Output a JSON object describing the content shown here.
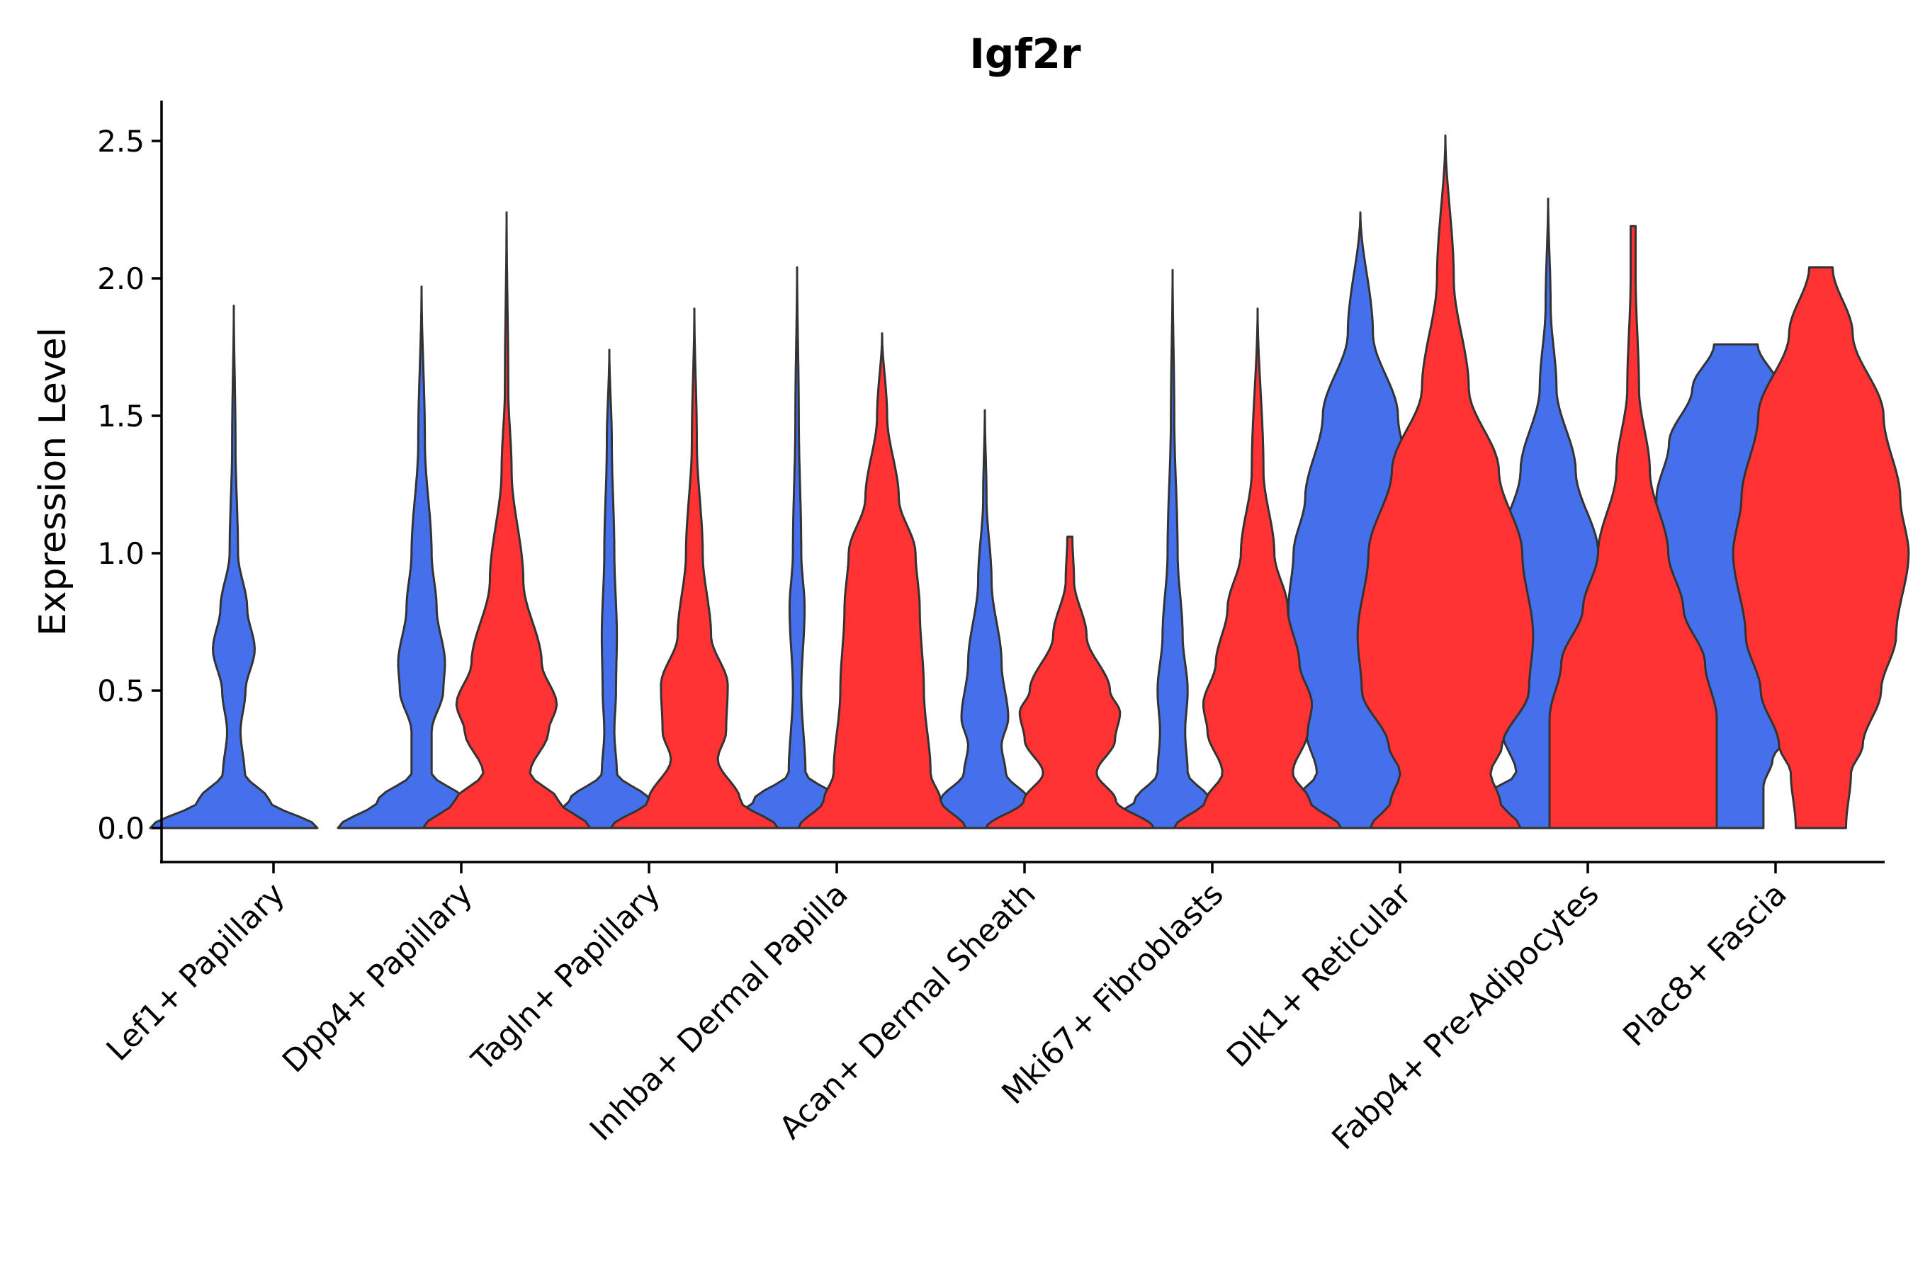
{
  "chart_data": {
    "type": "violin",
    "title": "Igf2r",
    "xlabel": "",
    "ylabel": "Expression Level",
    "ylim": [
      -0.12,
      2.65
    ],
    "yticks": [
      "0.0",
      "0.5",
      "1.0",
      "1.5",
      "2.0",
      "2.5"
    ],
    "grid": false,
    "legend": "none",
    "categories": [
      "Lef1+ Papillary",
      "Dpp4+ Papillary",
      "Tagln+ Papillary",
      "Inhba+ Dermal Papilla",
      "Acan+ Dermal Sheath",
      "Mki67+ Fibroblasts",
      "Dlk1+ Reticular",
      "Fabp4+ Pre-Adipocytes",
      "Plac8+ Fascia"
    ],
    "series": [
      {
        "name": "group-blue",
        "color": "#4570EB",
        "violins": [
          {
            "max": 1.9,
            "profile": [
              [
                0,
                1
              ],
              [
                0.1,
                0.42
              ],
              [
                0.2,
                0.13
              ],
              [
                0.35,
                0.08
              ],
              [
                0.5,
                0.14
              ],
              [
                0.65,
                0.25
              ],
              [
                0.8,
                0.16
              ],
              [
                1.0,
                0.05
              ],
              [
                1.4,
                0.02
              ],
              [
                1.9,
                0
              ]
            ]
          },
          {
            "max": 1.97,
            "profile": [
              [
                0,
                1
              ],
              [
                0.1,
                0.52
              ],
              [
                0.2,
                0.12
              ],
              [
                0.35,
                0.12
              ],
              [
                0.5,
                0.26
              ],
              [
                0.6,
                0.28
              ],
              [
                0.8,
                0.18
              ],
              [
                1.0,
                0.12
              ],
              [
                1.4,
                0.04
              ],
              [
                1.97,
                0
              ]
            ]
          },
          {
            "max": 1.74,
            "profile": [
              [
                0,
                1
              ],
              [
                0.1,
                0.48
              ],
              [
                0.2,
                0.09
              ],
              [
                0.35,
                0.06
              ],
              [
                0.5,
                0.08
              ],
              [
                0.7,
                0.09
              ],
              [
                1.0,
                0.06
              ],
              [
                1.4,
                0.03
              ],
              [
                1.74,
                0
              ]
            ]
          },
          {
            "max": 2.04,
            "profile": [
              [
                0,
                1
              ],
              [
                0.1,
                0.52
              ],
              [
                0.2,
                0.1
              ],
              [
                0.5,
                0.05
              ],
              [
                0.8,
                0.09
              ],
              [
                1.0,
                0.05
              ],
              [
                1.5,
                0.02
              ],
              [
                2.04,
                0
              ]
            ]
          },
          {
            "max": 1.52,
            "profile": [
              [
                0,
                1
              ],
              [
                0.1,
                0.53
              ],
              [
                0.2,
                0.25
              ],
              [
                0.3,
                0.2
              ],
              [
                0.4,
                0.28
              ],
              [
                0.6,
                0.2
              ],
              [
                0.9,
                0.08
              ],
              [
                1.2,
                0.02
              ],
              [
                1.52,
                0
              ]
            ]
          },
          {
            "max": 2.03,
            "profile": [
              [
                0,
                1
              ],
              [
                0.1,
                0.45
              ],
              [
                0.2,
                0.18
              ],
              [
                0.35,
                0.15
              ],
              [
                0.5,
                0.18
              ],
              [
                0.7,
                0.12
              ],
              [
                1.0,
                0.06
              ],
              [
                1.5,
                0.02
              ],
              [
                2.03,
                0
              ]
            ]
          },
          {
            "max": 2.24,
            "profile": [
              [
                0,
                1
              ],
              [
                0.1,
                0.78
              ],
              [
                0.2,
                0.52
              ],
              [
                0.35,
                0.65
              ],
              [
                0.5,
                0.82
              ],
              [
                0.6,
                0.86
              ],
              [
                0.8,
                0.86
              ],
              [
                1.0,
                0.8
              ],
              [
                1.2,
                0.66
              ],
              [
                1.5,
                0.45
              ],
              [
                1.8,
                0.15
              ],
              [
                2.24,
                0
              ]
            ]
          },
          {
            "max": 2.29,
            "profile": [
              [
                0,
                1
              ],
              [
                0.1,
                0.85
              ],
              [
                0.2,
                0.38
              ],
              [
                0.35,
                0.55
              ],
              [
                0.5,
                0.95
              ],
              [
                0.7,
                0.88
              ],
              [
                1.0,
                0.6
              ],
              [
                1.3,
                0.33
              ],
              [
                1.6,
                0.1
              ],
              [
                1.9,
                0.03
              ],
              [
                2.29,
                0
              ]
            ]
          },
          {
            "max": 1.76,
            "profile": [
              [
                0,
                0.33
              ],
              [
                0.15,
                0.33
              ],
              [
                0.25,
                0.44
              ],
              [
                0.35,
                0.66
              ],
              [
                0.5,
                0.9
              ],
              [
                0.7,
                0.85
              ],
              [
                1.0,
                1.0
              ],
              [
                1.2,
                0.95
              ],
              [
                1.4,
                0.8
              ],
              [
                1.6,
                0.52
              ],
              [
                1.76,
                0.26
              ]
            ]
          }
        ]
      },
      {
        "name": "group-red",
        "color": "#FF3333",
        "violins": [
          null,
          {
            "max": 2.24,
            "profile": [
              [
                0,
                1
              ],
              [
                0.1,
                0.62
              ],
              [
                0.2,
                0.28
              ],
              [
                0.35,
                0.5
              ],
              [
                0.45,
                0.6
              ],
              [
                0.6,
                0.42
              ],
              [
                0.9,
                0.2
              ],
              [
                1.3,
                0.06
              ],
              [
                1.6,
                0.02
              ],
              [
                2.24,
                0
              ]
            ]
          },
          {
            "max": 1.89,
            "profile": [
              [
                0,
                1
              ],
              [
                0.1,
                0.55
              ],
              [
                0.25,
                0.28
              ],
              [
                0.35,
                0.38
              ],
              [
                0.52,
                0.4
              ],
              [
                0.7,
                0.2
              ],
              [
                1.0,
                0.1
              ],
              [
                1.4,
                0.03
              ],
              [
                1.89,
                0
              ]
            ]
          },
          {
            "max": 1.8,
            "profile": [
              [
                0,
                1
              ],
              [
                0.1,
                0.7
              ],
              [
                0.2,
                0.58
              ],
              [
                0.5,
                0.5
              ],
              [
                0.8,
                0.45
              ],
              [
                1.0,
                0.4
              ],
              [
                1.2,
                0.2
              ],
              [
                1.5,
                0.06
              ],
              [
                1.8,
                0
              ]
            ]
          },
          {
            "max": 1.06,
            "profile": [
              [
                0,
                1
              ],
              [
                0.1,
                0.55
              ],
              [
                0.2,
                0.32
              ],
              [
                0.32,
                0.54
              ],
              [
                0.42,
                0.6
              ],
              [
                0.5,
                0.48
              ],
              [
                0.7,
                0.2
              ],
              [
                0.9,
                0.05
              ],
              [
                1.06,
                0.03
              ]
            ]
          },
          {
            "max": 1.89,
            "profile": [
              [
                0,
                1
              ],
              [
                0.1,
                0.62
              ],
              [
                0.2,
                0.42
              ],
              [
                0.35,
                0.6
              ],
              [
                0.45,
                0.65
              ],
              [
                0.6,
                0.5
              ],
              [
                0.8,
                0.36
              ],
              [
                1.0,
                0.2
              ],
              [
                1.3,
                0.07
              ],
              [
                1.89,
                0
              ]
            ]
          },
          {
            "max": 2.52,
            "profile": [
              [
                0,
                0.9
              ],
              [
                0.1,
                0.65
              ],
              [
                0.2,
                0.54
              ],
              [
                0.3,
                0.68
              ],
              [
                0.5,
                1.0
              ],
              [
                0.7,
                1.05
              ],
              [
                1.0,
                0.92
              ],
              [
                1.3,
                0.64
              ],
              [
                1.6,
                0.28
              ],
              [
                2.0,
                0.1
              ],
              [
                2.52,
                0
              ]
            ]
          },
          {
            "max": 2.19,
            "profile": [
              [
                0,
                1
              ],
              [
                0.2,
                1
              ],
              [
                0.4,
                1
              ],
              [
                0.6,
                0.86
              ],
              [
                0.8,
                0.6
              ],
              [
                1.0,
                0.42
              ],
              [
                1.3,
                0.2
              ],
              [
                1.6,
                0.07
              ],
              [
                2.0,
                0.03
              ],
              [
                2.19,
                0.03
              ]
            ]
          },
          {
            "max": 2.04,
            "profile": [
              [
                0,
                0.3
              ],
              [
                0.2,
                0.36
              ],
              [
                0.3,
                0.5
              ],
              [
                0.5,
                0.72
              ],
              [
                0.7,
                0.9
              ],
              [
                1.0,
                1.05
              ],
              [
                1.2,
                0.95
              ],
              [
                1.5,
                0.75
              ],
              [
                1.8,
                0.38
              ],
              [
                2.04,
                0.14
              ]
            ]
          }
        ]
      }
    ]
  }
}
